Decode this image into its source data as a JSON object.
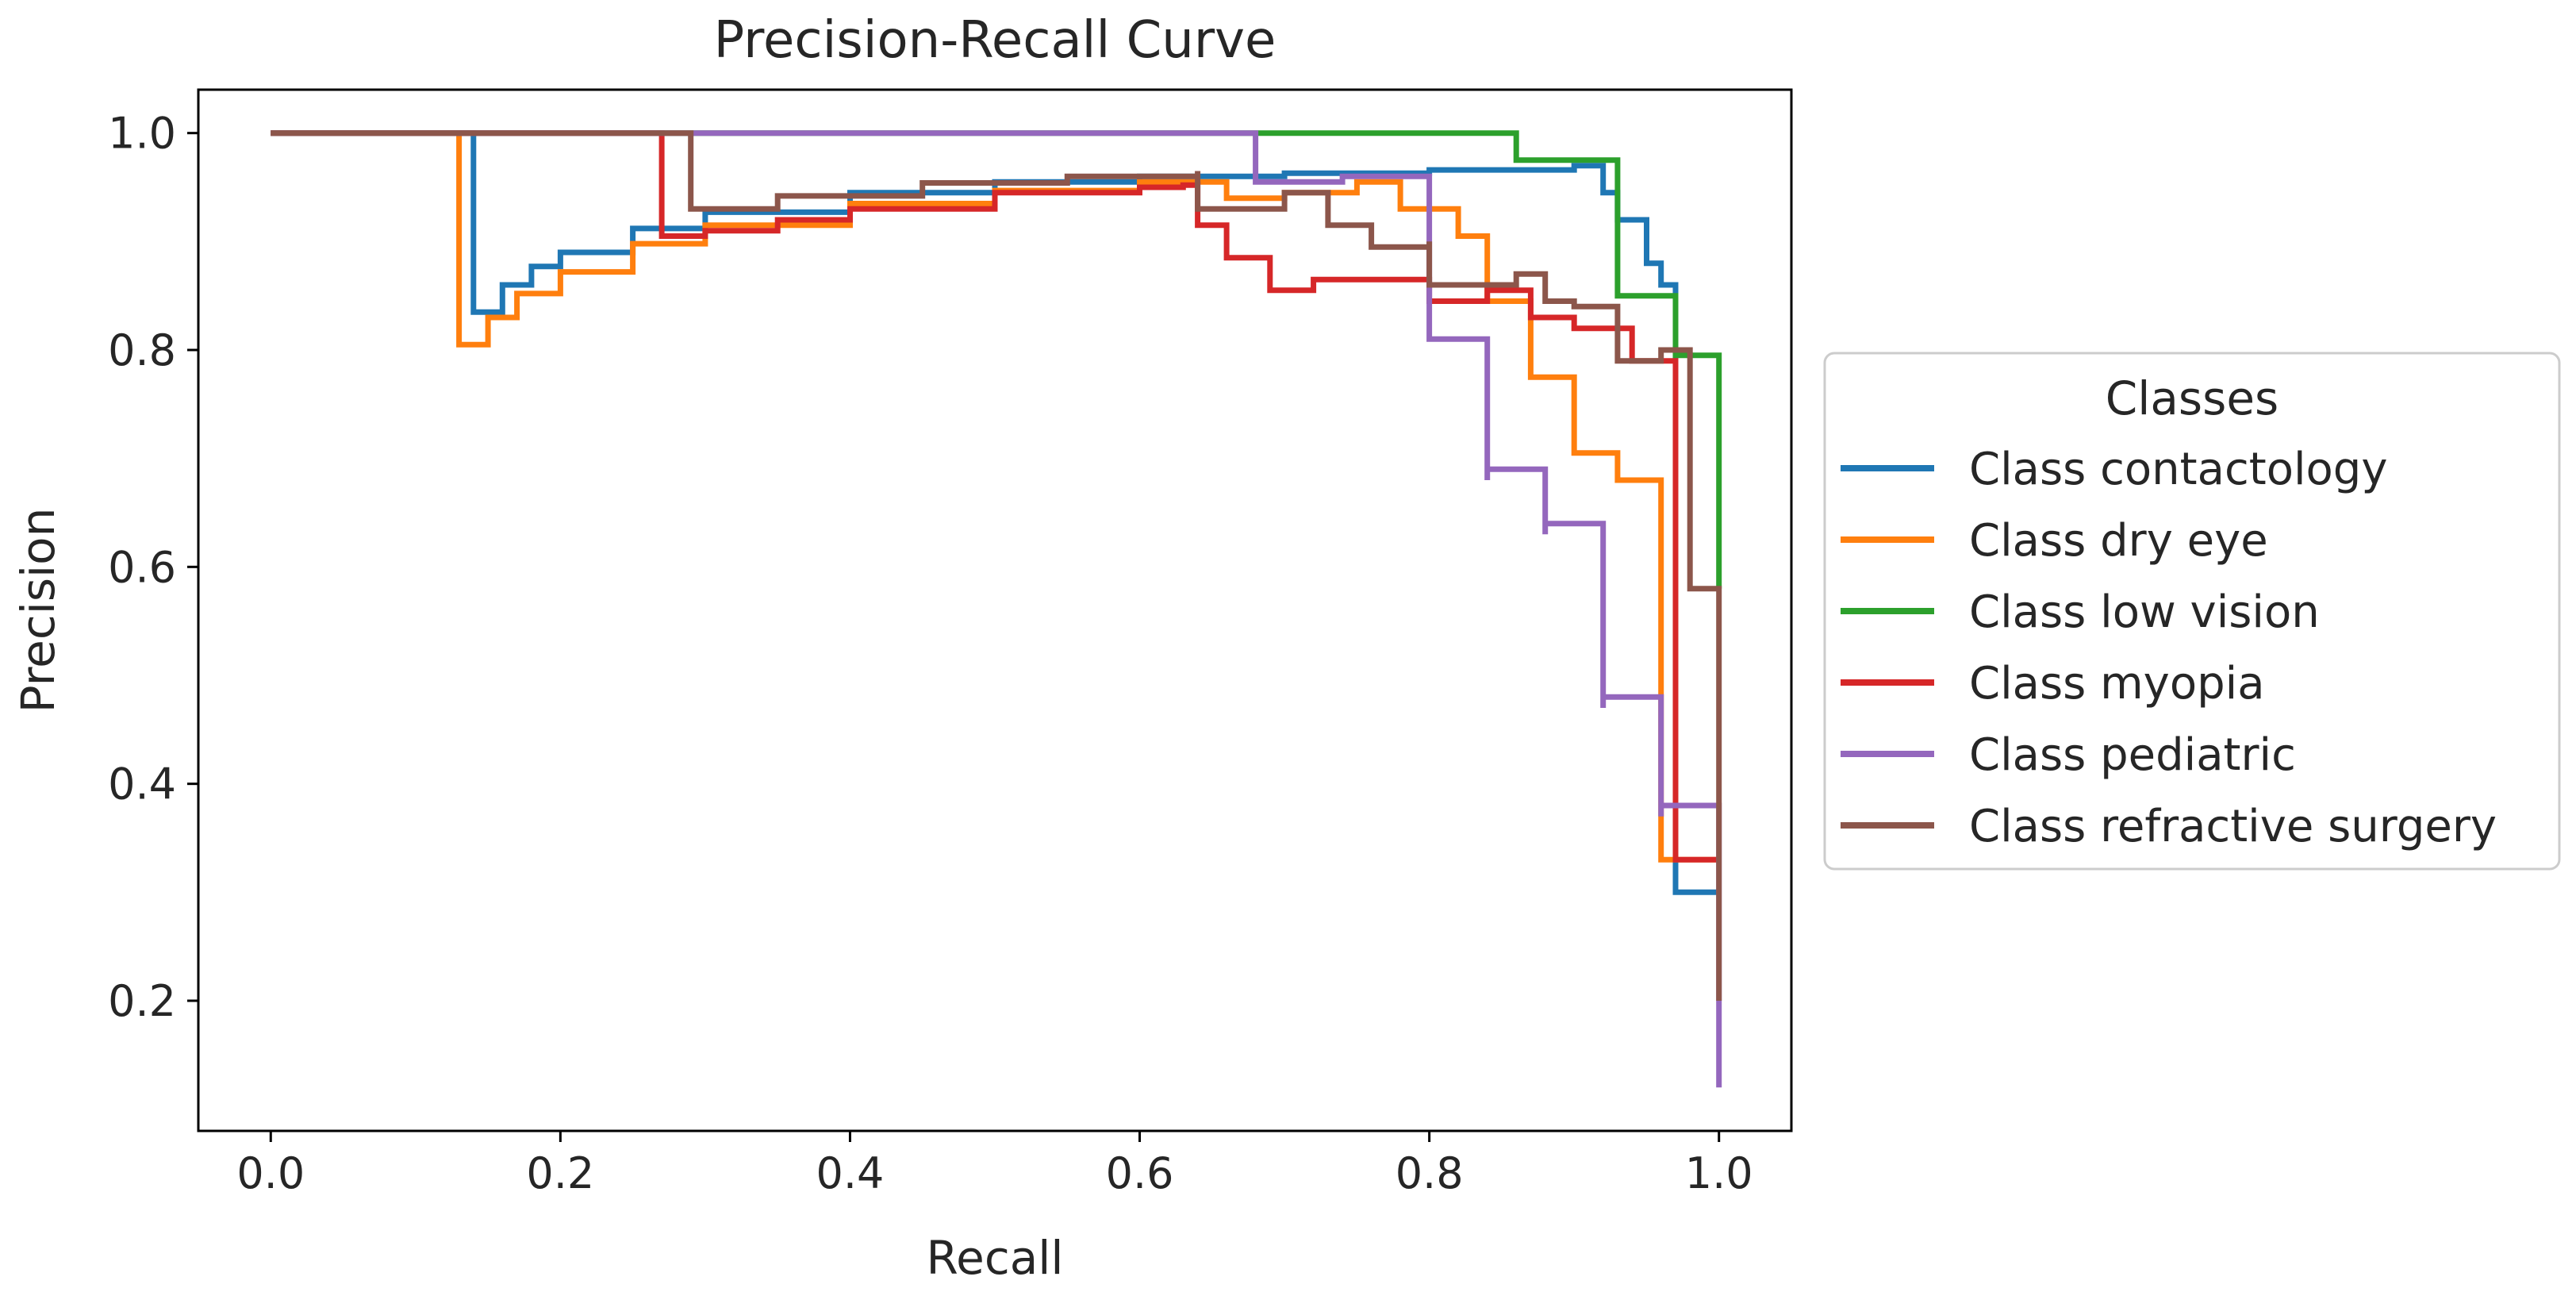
{
  "chart_data": {
    "type": "line",
    "step": "post",
    "title": "Precision-Recall Curve",
    "xlabel": "Recall",
    "ylabel": "Precision",
    "xlim": [
      -0.05,
      1.05
    ],
    "ylim": [
      0.08,
      1.04
    ],
    "xticks": [
      0.0,
      0.2,
      0.4,
      0.6,
      0.8,
      1.0
    ],
    "xtick_labels": [
      "0.0",
      "0.2",
      "0.4",
      "0.6",
      "0.8",
      "1.0"
    ],
    "yticks": [
      0.2,
      0.4,
      0.6,
      0.8,
      1.0
    ],
    "ytick_labels": [
      "0.2",
      "0.4",
      "0.6",
      "0.8",
      "1.0"
    ],
    "grid": false,
    "legend": {
      "title": "Classes",
      "placement": "right-outside"
    },
    "series": [
      {
        "name": "Class contactology",
        "color": "#1f77b4",
        "x": [
          0.0,
          0.14,
          0.14,
          0.16,
          0.18,
          0.2,
          0.25,
          0.3,
          0.4,
          0.5,
          0.6,
          0.7,
          0.8,
          0.9,
          0.92,
          0.93,
          0.95,
          0.96,
          0.97,
          0.98,
          1.0
        ],
        "y": [
          1.0,
          1.0,
          0.835,
          0.86,
          0.877,
          0.89,
          0.912,
          0.927,
          0.945,
          0.955,
          0.96,
          0.963,
          0.966,
          0.97,
          0.945,
          0.92,
          0.88,
          0.86,
          0.3,
          0.3,
          0.3
        ]
      },
      {
        "name": "Class dry eye",
        "color": "#ff7f0e",
        "x": [
          0.0,
          0.13,
          0.13,
          0.15,
          0.17,
          0.2,
          0.25,
          0.3,
          0.4,
          0.5,
          0.6,
          0.66,
          0.7,
          0.75,
          0.78,
          0.82,
          0.84,
          0.87,
          0.9,
          0.93,
          0.96,
          0.97,
          0.98,
          1.0
        ],
        "y": [
          1.0,
          1.0,
          0.805,
          0.83,
          0.852,
          0.872,
          0.898,
          0.915,
          0.935,
          0.947,
          0.955,
          0.94,
          0.945,
          0.955,
          0.93,
          0.905,
          0.845,
          0.775,
          0.705,
          0.68,
          0.33,
          0.33,
          0.33,
          0.33
        ]
      },
      {
        "name": "Class low vision",
        "color": "#2ca02c",
        "x": [
          0.0,
          0.68,
          0.86,
          0.93,
          0.97,
          1.0,
          1.0
        ],
        "y": [
          1.0,
          1.0,
          0.975,
          0.85,
          0.795,
          0.795,
          0.58
        ]
      },
      {
        "name": "Class myopia",
        "color": "#d62728",
        "x": [
          0.0,
          0.27,
          0.27,
          0.3,
          0.35,
          0.4,
          0.5,
          0.6,
          0.63,
          0.64,
          0.66,
          0.69,
          0.72,
          0.8,
          0.84,
          0.87,
          0.9,
          0.94,
          0.97,
          0.97,
          1.0,
          1.0
        ],
        "y": [
          1.0,
          1.0,
          0.905,
          0.91,
          0.92,
          0.93,
          0.945,
          0.95,
          0.952,
          0.915,
          0.885,
          0.855,
          0.865,
          0.845,
          0.855,
          0.83,
          0.82,
          0.79,
          0.79,
          0.33,
          0.33,
          0.33
        ]
      },
      {
        "name": "Class pediatric",
        "color": "#9467bd",
        "x": [
          0.0,
          0.68,
          0.68,
          0.74,
          0.8,
          0.8,
          0.84,
          0.84,
          0.88,
          0.88,
          0.92,
          0.92,
          0.96,
          0.96,
          1.0,
          1.0
        ],
        "y": [
          1.0,
          1.0,
          0.955,
          0.96,
          0.95,
          0.81,
          0.68,
          0.69,
          0.63,
          0.64,
          0.47,
          0.48,
          0.37,
          0.38,
          0.38,
          0.12
        ]
      },
      {
        "name": "Class refractive surgery",
        "color": "#8c564b",
        "x": [
          0.0,
          0.29,
          0.29,
          0.35,
          0.45,
          0.55,
          0.64,
          0.64,
          0.7,
          0.73,
          0.76,
          0.8,
          0.8,
          0.86,
          0.88,
          0.9,
          0.93,
          0.96,
          0.98,
          0.98,
          1.0,
          1.0
        ],
        "y": [
          1.0,
          1.0,
          0.93,
          0.942,
          0.954,
          0.96,
          0.965,
          0.93,
          0.945,
          0.915,
          0.895,
          0.9,
          0.86,
          0.87,
          0.845,
          0.84,
          0.79,
          0.8,
          0.8,
          0.58,
          0.58,
          0.2
        ]
      }
    ]
  }
}
